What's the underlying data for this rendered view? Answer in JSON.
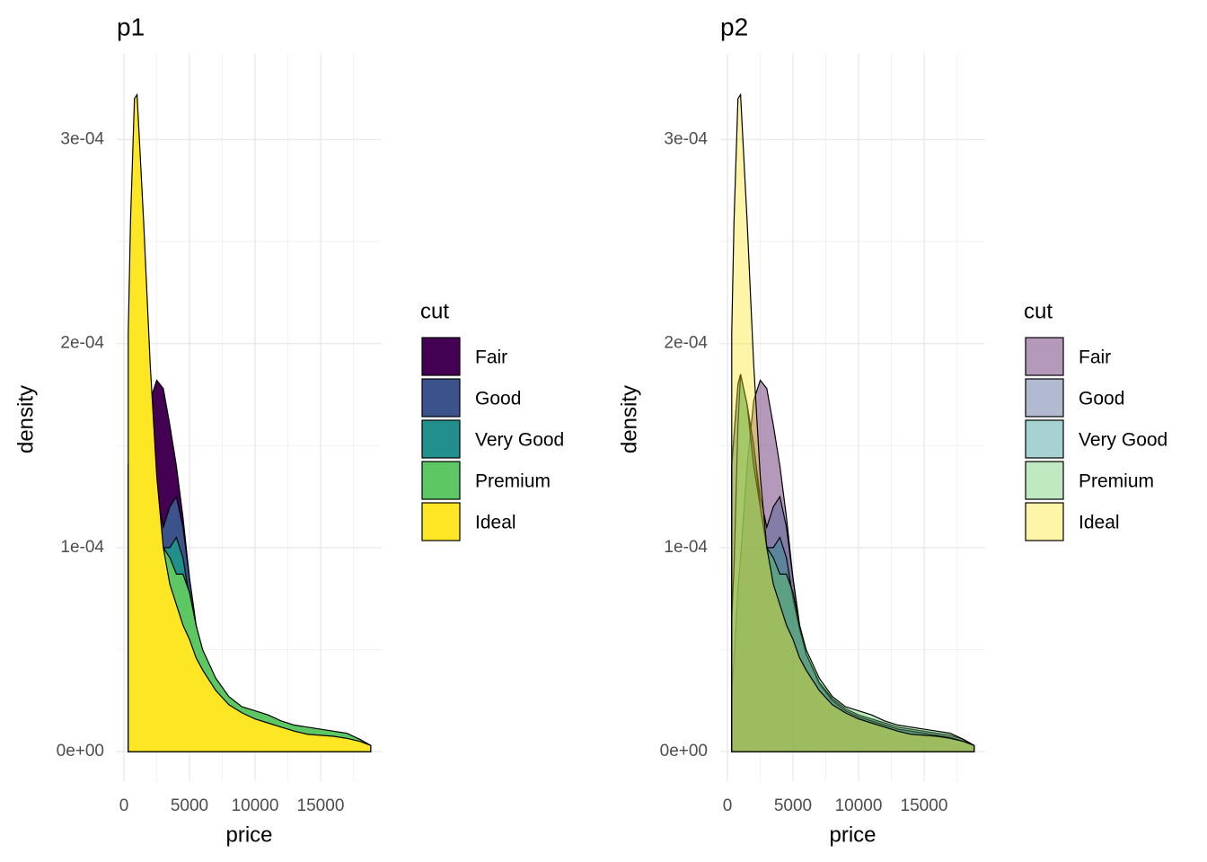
{
  "chart_data": [
    {
      "type": "density",
      "title": "p1",
      "x_label": "price",
      "y_label": "density",
      "legend_title": "cut",
      "opacity": 1,
      "x": [
        326,
        500,
        800,
        1000,
        1500,
        2000,
        2500,
        3000,
        3500,
        4000,
        4500,
        5000,
        5500,
        6000,
        7000,
        8000,
        9000,
        10000,
        11000,
        12000,
        13000,
        14000,
        15000,
        16000,
        17000,
        18000,
        18823
      ],
      "series": [
        {
          "name": "Fair",
          "color": "#440154",
          "values": [
            3e-05,
            4.5e-05,
            8e-05,
            9.5e-05,
            0.00014,
            0.000172,
            0.000182,
            0.000178,
            0.00016,
            0.00014,
            0.000115,
            8.5e-05,
            6.2e-05,
            4.8e-05,
            3.4e-05,
            2.6e-05,
            2.1e-05,
            1.8e-05,
            1.6e-05,
            1.4e-05,
            1.2e-05,
            1.1e-05,
            1e-05,
            9e-06,
            8e-06,
            6e-06,
            3e-06
          ]
        },
        {
          "name": "Good",
          "color": "#3B528B",
          "values": [
            0.00014,
            0.000155,
            0.00018,
            0.000185,
            0.00017,
            0.00015,
            0.000125,
            0.00011,
            0.00012,
            0.000125,
            0.00011,
            8.5e-05,
            6.2e-05,
            4.8e-05,
            3.3e-05,
            2.5e-05,
            2e-05,
            1.7e-05,
            1.5e-05,
            1.3e-05,
            1.1e-05,
            1e-05,
            9e-06,
            8e-06,
            7e-06,
            5e-06,
            3e-06
          ]
        },
        {
          "name": "Very Good",
          "color": "#21908C",
          "values": [
            0.00014,
            0.000155,
            0.00018,
            0.000185,
            0.00017,
            0.00015,
            0.00012,
            0.0001,
            0.0001,
            0.000105,
            9.5e-05,
            7.5e-05,
            6e-05,
            4.8e-05,
            3.4e-05,
            2.5e-05,
            2e-05,
            1.7e-05,
            1.5e-05,
            1.3e-05,
            1.1e-05,
            1e-05,
            9e-06,
            8e-06,
            7e-06,
            5e-06,
            3e-06
          ]
        },
        {
          "name": "Premium",
          "color": "#5DC863",
          "values": [
            6.5e-05,
            9e-05,
            0.00016,
            0.000185,
            0.00017,
            0.00014,
            0.00012,
            0.0001,
            9.5e-05,
            8.7e-05,
            8.7e-05,
            7.8e-05,
            6.2e-05,
            5e-05,
            3.6e-05,
            2.7e-05,
            2.2e-05,
            2e-05,
            1.8e-05,
            1.5e-05,
            1.3e-05,
            1.2e-05,
            1.1e-05,
            1e-05,
            9e-06,
            6e-06,
            3e-06
          ]
        },
        {
          "name": "Ideal",
          "color": "#FDE725",
          "values": [
            0.000205,
            0.00026,
            0.00032,
            0.000322,
            0.00026,
            0.00019,
            0.000135,
            0.0001,
            8.2e-05,
            7.2e-05,
            6.2e-05,
            5.5e-05,
            4.6e-05,
            4e-05,
            3e-05,
            2.3e-05,
            1.9e-05,
            1.6e-05,
            1.4e-05,
            1.2e-05,
            1e-05,
            8.5e-06,
            8e-06,
            7.5e-06,
            6.5e-06,
            5e-06,
            3e-06
          ]
        }
      ],
      "xlim": [
        -550,
        19660
      ],
      "ylim": [
        -1.45e-05,
        0.000342
      ],
      "xticks": [
        0,
        5000,
        10000,
        15000
      ],
      "xminor": [
        2500,
        7500,
        12500,
        17500
      ],
      "yticks": [
        {
          "value": 0,
          "label": "0e+00"
        },
        {
          "value": 0.0001,
          "label": "1e-04"
        },
        {
          "value": 0.0002,
          "label": "2e-04"
        },
        {
          "value": 0.0003,
          "label": "3e-04"
        }
      ],
      "yminor": [
        5e-05,
        0.00015,
        0.00025
      ],
      "grid": true
    },
    {
      "type": "density",
      "title": "p2",
      "x_label": "price",
      "y_label": "density",
      "legend_title": "cut",
      "opacity": 0.4,
      "x": [
        326,
        500,
        800,
        1000,
        1500,
        2000,
        2500,
        3000,
        3500,
        4000,
        4500,
        5000,
        5500,
        6000,
        7000,
        8000,
        9000,
        10000,
        11000,
        12000,
        13000,
        14000,
        15000,
        16000,
        17000,
        18000,
        18823
      ],
      "series": [
        {
          "name": "Fair",
          "color": "#440154",
          "values": [
            3e-05,
            4.5e-05,
            8e-05,
            9.5e-05,
            0.00014,
            0.000172,
            0.000182,
            0.000178,
            0.00016,
            0.00014,
            0.000115,
            8.5e-05,
            6.2e-05,
            4.8e-05,
            3.4e-05,
            2.6e-05,
            2.1e-05,
            1.8e-05,
            1.6e-05,
            1.4e-05,
            1.2e-05,
            1.1e-05,
            1e-05,
            9e-06,
            8e-06,
            6e-06,
            3e-06
          ]
        },
        {
          "name": "Good",
          "color": "#3B528B",
          "values": [
            0.00014,
            0.000155,
            0.00018,
            0.000185,
            0.00017,
            0.00015,
            0.000125,
            0.00011,
            0.00012,
            0.000125,
            0.00011,
            8.5e-05,
            6.2e-05,
            4.8e-05,
            3.3e-05,
            2.5e-05,
            2e-05,
            1.7e-05,
            1.5e-05,
            1.3e-05,
            1.1e-05,
            1e-05,
            9e-06,
            8e-06,
            7e-06,
            5e-06,
            3e-06
          ]
        },
        {
          "name": "Very Good",
          "color": "#21908C",
          "values": [
            0.00014,
            0.000155,
            0.00018,
            0.000185,
            0.00017,
            0.00015,
            0.00012,
            0.0001,
            0.0001,
            0.000105,
            9.5e-05,
            7.5e-05,
            6e-05,
            4.8e-05,
            3.4e-05,
            2.5e-05,
            2e-05,
            1.7e-05,
            1.5e-05,
            1.3e-05,
            1.1e-05,
            1e-05,
            9e-06,
            8e-06,
            7e-06,
            5e-06,
            3e-06
          ]
        },
        {
          "name": "Premium",
          "color": "#5DC863",
          "values": [
            6.5e-05,
            9e-05,
            0.00016,
            0.000185,
            0.00017,
            0.00014,
            0.00012,
            0.0001,
            9.5e-05,
            8.7e-05,
            8.7e-05,
            7.8e-05,
            6.2e-05,
            5e-05,
            3.6e-05,
            2.7e-05,
            2.2e-05,
            2e-05,
            1.8e-05,
            1.5e-05,
            1.3e-05,
            1.2e-05,
            1.1e-05,
            1e-05,
            9e-06,
            6e-06,
            3e-06
          ]
        },
        {
          "name": "Ideal",
          "color": "#FDE725",
          "values": [
            0.000205,
            0.00026,
            0.00032,
            0.000322,
            0.00026,
            0.00019,
            0.000135,
            0.0001,
            8.2e-05,
            7.2e-05,
            6.2e-05,
            5.5e-05,
            4.6e-05,
            4e-05,
            3e-05,
            2.3e-05,
            1.9e-05,
            1.6e-05,
            1.4e-05,
            1.2e-05,
            1e-05,
            8.5e-06,
            8e-06,
            7.5e-06,
            6.5e-06,
            5e-06,
            3e-06
          ]
        }
      ],
      "xlim": [
        -550,
        19660
      ],
      "ylim": [
        -1.45e-05,
        0.000342
      ],
      "xticks": [
        0,
        5000,
        10000,
        15000
      ],
      "xminor": [
        2500,
        7500,
        12500,
        17500
      ],
      "yticks": [
        {
          "value": 0,
          "label": "0e+00"
        },
        {
          "value": 0.0001,
          "label": "1e-04"
        },
        {
          "value": 0.0002,
          "label": "2e-04"
        },
        {
          "value": 0.0003,
          "label": "3e-04"
        }
      ],
      "yminor": [
        5e-05,
        0.00015,
        0.00025
      ],
      "grid": true
    }
  ]
}
